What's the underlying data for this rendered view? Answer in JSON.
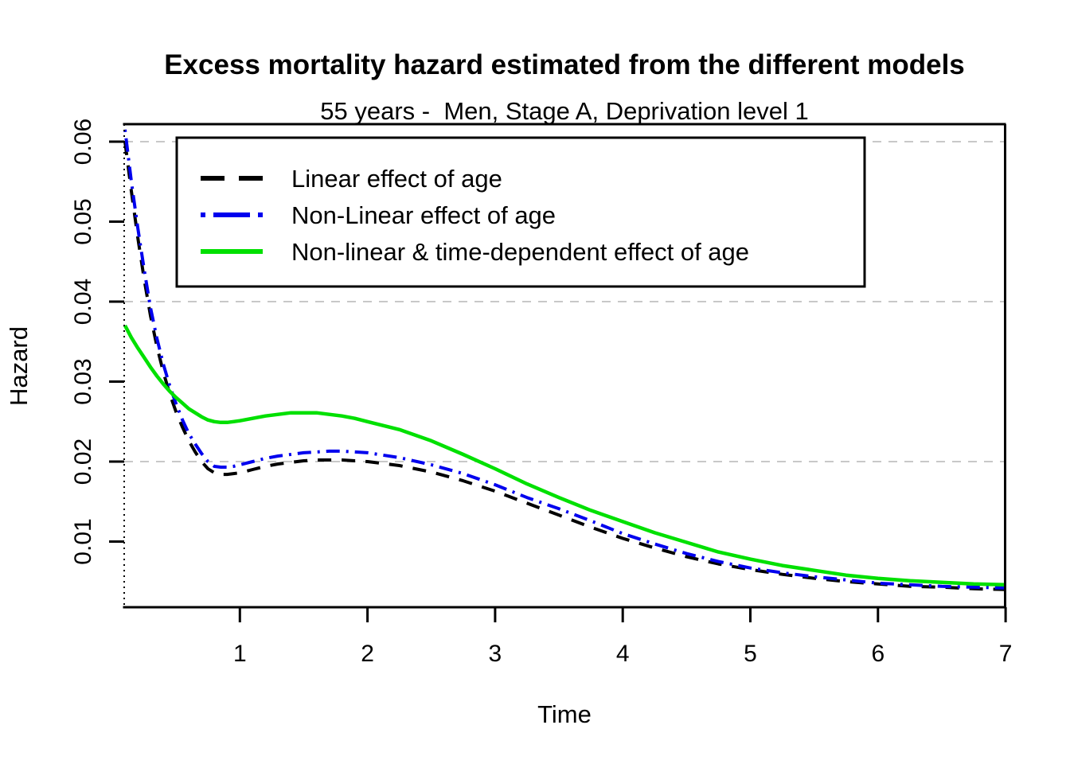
{
  "chart_data": {
    "type": "line",
    "title": "Excess mortality hazard estimated from the different models",
    "subtitle": "55 years -  Men, Stage A, Deprivation level 1",
    "xlabel": "Time",
    "ylabel": "Hazard",
    "xlim": [
      0.095,
      7.01
    ],
    "ylim": [
      0.0018,
      0.0622
    ],
    "x_ticks": [
      1,
      2,
      3,
      4,
      5,
      6,
      7
    ],
    "y_ticks": [
      0.01,
      0.02,
      0.03,
      0.04,
      0.05,
      0.06
    ],
    "y_tick_labels": [
      "0.01",
      "0.02",
      "0.03",
      "0.04",
      "0.05",
      "0.06"
    ],
    "gridlines_y": [
      0.02,
      0.04,
      0.06
    ],
    "grid_color": "#c8c8c8",
    "legend_position": "topleft",
    "x": [
      0.1,
      0.15,
      0.2,
      0.25,
      0.3,
      0.35,
      0.4,
      0.45,
      0.5,
      0.55,
      0.6,
      0.65,
      0.7,
      0.75,
      0.8,
      0.85,
      0.9,
      0.95,
      1.0,
      1.1,
      1.2,
      1.3,
      1.4,
      1.5,
      1.6,
      1.7,
      1.8,
      1.9,
      2.0,
      2.25,
      2.5,
      2.75,
      3.0,
      3.25,
      3.5,
      3.75,
      4.0,
      4.25,
      4.5,
      4.75,
      5.0,
      5.25,
      5.5,
      5.75,
      6.0,
      6.25,
      6.5,
      6.75,
      7.0
    ],
    "series": [
      {
        "name": "Linear effect of age",
        "color": "#000000",
        "style": "dashed",
        "values": [
          0.06,
          0.0538,
          0.048,
          0.0428,
          0.0382,
          0.0344,
          0.0312,
          0.0285,
          0.0262,
          0.0243,
          0.0226,
          0.0212,
          0.02,
          0.0191,
          0.0186,
          0.0184,
          0.0184,
          0.0185,
          0.0186,
          0.019,
          0.0194,
          0.0197,
          0.0199,
          0.0201,
          0.0202,
          0.0202,
          0.0202,
          0.0201,
          0.02,
          0.0195,
          0.0187,
          0.0176,
          0.0163,
          0.0148,
          0.0133,
          0.0118,
          0.0104,
          0.0092,
          0.0081,
          0.0072,
          0.0065,
          0.0059,
          0.0054,
          0.005,
          0.0047,
          0.0044,
          0.0043,
          0.0041,
          0.004
        ]
      },
      {
        "name": "Non-Linear effect of age",
        "color": "#0000ee",
        "style": "dashdot",
        "values": [
          0.0615,
          0.055,
          0.0492,
          0.044,
          0.0392,
          0.0354,
          0.0322,
          0.0295,
          0.0272,
          0.0252,
          0.0235,
          0.0222,
          0.021,
          0.02,
          0.0194,
          0.0193,
          0.0193,
          0.0194,
          0.0196,
          0.02,
          0.0204,
          0.0207,
          0.0209,
          0.0211,
          0.0212,
          0.0213,
          0.0213,
          0.0212,
          0.0211,
          0.0205,
          0.0196,
          0.0185,
          0.0171,
          0.0155,
          0.0141,
          0.0126,
          0.011,
          0.0097,
          0.0085,
          0.0075,
          0.0067,
          0.0061,
          0.0056,
          0.0052,
          0.0048,
          0.0046,
          0.0044,
          0.0043,
          0.0042
        ]
      },
      {
        "name": "Non-linear & time-dependent effect of age",
        "color": "#00e000",
        "style": "solid",
        "values": [
          0.037,
          0.0355,
          0.0342,
          0.033,
          0.0318,
          0.0307,
          0.0297,
          0.0288,
          0.028,
          0.0273,
          0.0266,
          0.0261,
          0.0256,
          0.0252,
          0.025,
          0.0249,
          0.0249,
          0.025,
          0.0251,
          0.0254,
          0.0257,
          0.0259,
          0.0261,
          0.0261,
          0.0261,
          0.0259,
          0.0257,
          0.0254,
          0.025,
          0.024,
          0.0226,
          0.0209,
          0.0191,
          0.0172,
          0.0155,
          0.0139,
          0.0125,
          0.0111,
          0.0099,
          0.0087,
          0.0078,
          0.007,
          0.0064,
          0.0058,
          0.0054,
          0.0051,
          0.0049,
          0.0047,
          0.0046
        ]
      }
    ]
  }
}
